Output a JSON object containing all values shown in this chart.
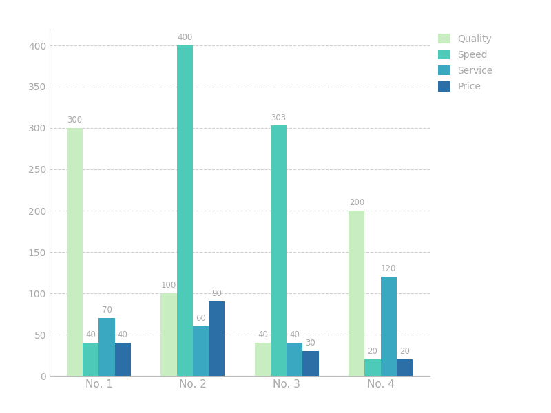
{
  "categories": [
    "No. 1",
    "No. 2",
    "No. 3",
    "No. 4"
  ],
  "series": [
    {
      "name": "Quality",
      "values": [
        300,
        100,
        40,
        200
      ],
      "color": "#c8edc0"
    },
    {
      "name": "Speed",
      "values": [
        40,
        400,
        303,
        20
      ],
      "color": "#4ecbb8"
    },
    {
      "name": "Service",
      "values": [
        70,
        60,
        40,
        120
      ],
      "color": "#3aa8c0"
    },
    {
      "name": "Price",
      "values": [
        40,
        90,
        30,
        20
      ],
      "color": "#2c6ea6"
    }
  ],
  "ylim": [
    0,
    420
  ],
  "yticks": [
    0,
    50,
    100,
    150,
    200,
    250,
    300,
    350,
    400
  ],
  "bar_width": 0.17,
  "background_color": "#ffffff",
  "grid_color": "#d0d0d0",
  "tick_label_color": "#aaaaaa",
  "bar_label_color": "#aaaaaa",
  "figsize": [
    8.0,
    6.0
  ],
  "dpi": 100
}
